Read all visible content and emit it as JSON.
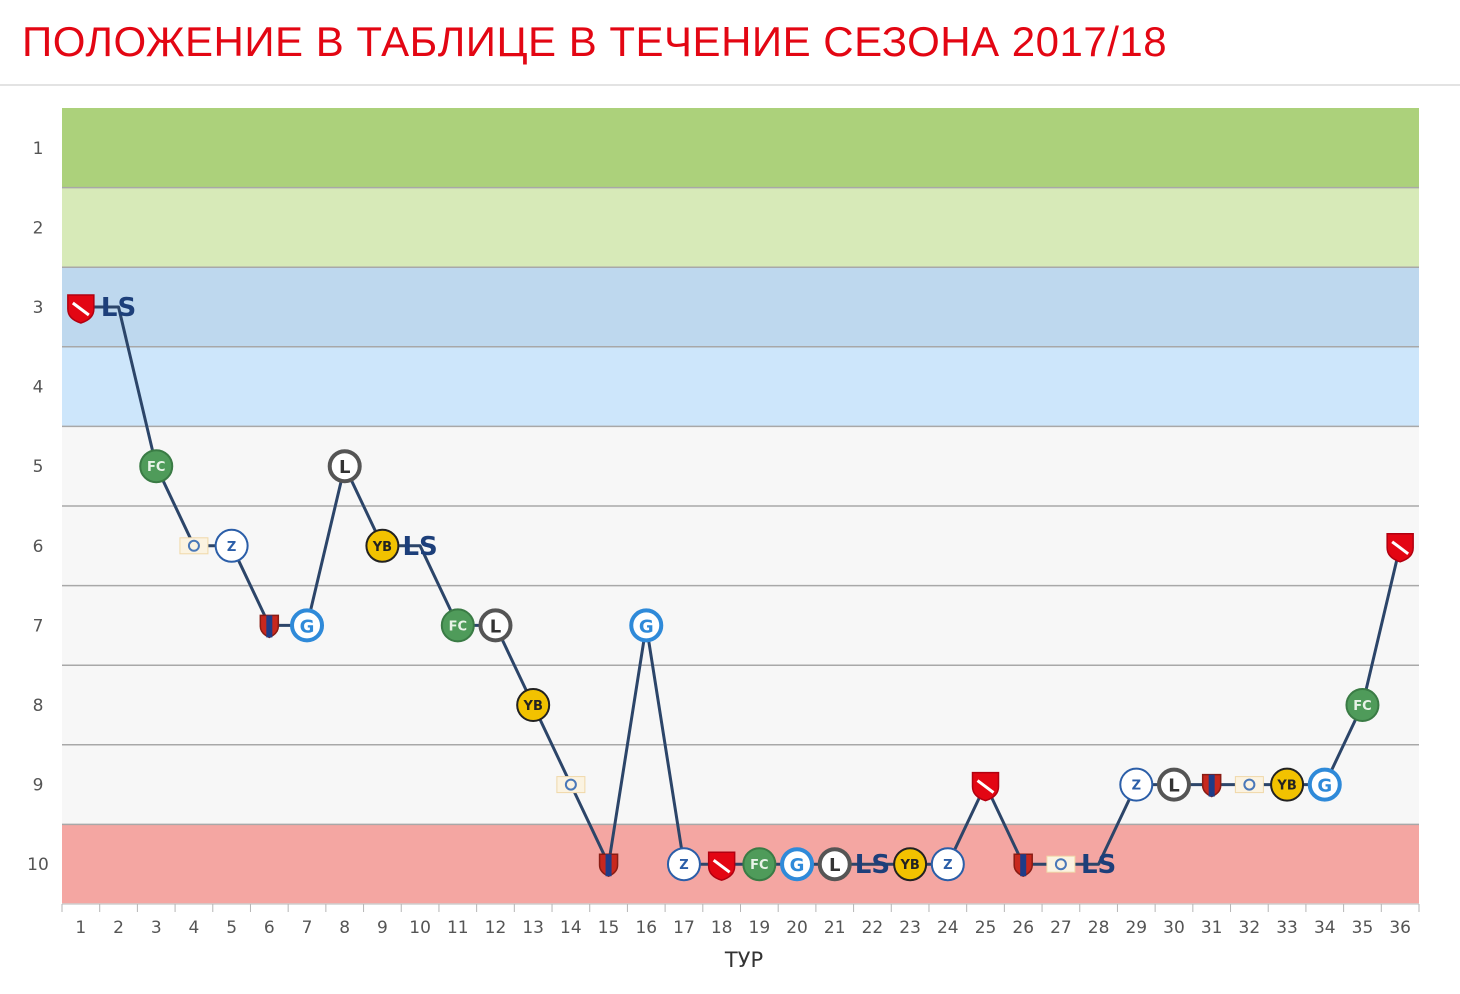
{
  "title": "ПОЛОЖЕНИЕ В ТАБЛИЦЕ В ТЕЧЕНИЕ СЕЗОНА 2017/18",
  "chart_data": {
    "type": "line",
    "title": "ПОЛОЖЕНИЕ В ТАБЛИЦЕ В ТЕЧЕНИЕ СЕЗОНА 2017/18",
    "xlabel": "ТУР",
    "ylabel": "",
    "x": [
      1,
      2,
      3,
      4,
      5,
      6,
      7,
      8,
      9,
      10,
      11,
      12,
      13,
      14,
      15,
      16,
      17,
      18,
      19,
      20,
      21,
      22,
      23,
      24,
      25,
      26,
      27,
      28,
      29,
      30,
      31,
      32,
      33,
      34,
      35,
      36
    ],
    "y_ticks": [
      1,
      2,
      3,
      4,
      5,
      6,
      7,
      8,
      9,
      10
    ],
    "ylim": [
      10.5,
      0.5
    ],
    "y_inverted": true,
    "grid": true,
    "series": [
      {
        "values": [
          3,
          3,
          5,
          6,
          6,
          7,
          7,
          5,
          6,
          6,
          7,
          7,
          8,
          9,
          10,
          7,
          10,
          10,
          10,
          10,
          10,
          10,
          10,
          10,
          9,
          10,
          10,
          10,
          9,
          9,
          9,
          9,
          9,
          9,
          8,
          6
        ],
        "opponents": [
          "thun-icon",
          "lausanne-icon",
          "st-gallen-icon",
          "luzern-icon",
          "zurich-icon",
          "basel-icon",
          "grasshoppers-icon",
          "lugano-icon",
          "young-boys-icon",
          "lausanne-icon",
          "st-gallen-icon",
          "lugano-icon",
          "young-boys-icon",
          "luzern-icon",
          "basel-icon",
          "grasshoppers-icon",
          "zurich-icon",
          "thun-icon",
          "st-gallen-icon",
          "grasshoppers-icon",
          "lugano-icon",
          "lausanne-icon",
          "young-boys-icon",
          "zurich-icon",
          "thun-icon",
          "basel-icon",
          "luzern-icon",
          "lausanne-icon",
          "zurich-icon",
          "lugano-icon",
          "basel-icon",
          "luzern-icon",
          "young-boys-icon",
          "grasshoppers-icon",
          "st-gallen-icon",
          "thun-icon"
        ]
      }
    ],
    "bands": [
      {
        "from": 1,
        "to": 1,
        "color": "#acd17b"
      },
      {
        "from": 2,
        "to": 2,
        "color": "#d7eab8"
      },
      {
        "from": 3,
        "to": 3,
        "color": "#bed8ee"
      },
      {
        "from": 4,
        "to": 4,
        "color": "#cde6fb"
      },
      {
        "from": 5,
        "to": 9,
        "color": "#f7f7f7"
      },
      {
        "from": 10,
        "to": 10,
        "color": "#f4a6a2"
      }
    ]
  },
  "colors": {
    "title": "#e30613",
    "line": "#2c4569",
    "band_separator": "#a8a8a8"
  }
}
